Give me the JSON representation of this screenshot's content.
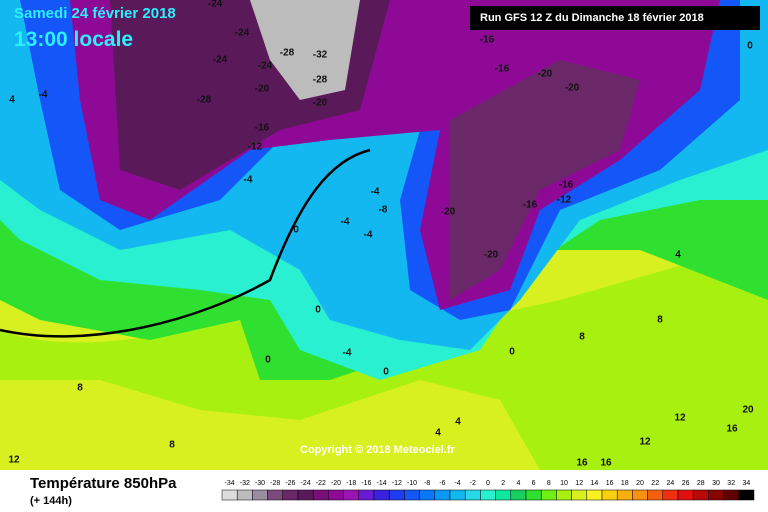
{
  "header": {
    "date": "Samedi 24 février 2018",
    "time": "13:00 locale",
    "run": "Run GFS 12 Z du Dimanche 18 février 2018"
  },
  "copyright": "Copyright © 2018 Meteociel.fr",
  "footer": {
    "title": "Température 850hPa",
    "lead": "(+ 144h)"
  },
  "scale": {
    "values": [
      -34,
      -32,
      -30,
      -28,
      -26,
      -24,
      -22,
      -20,
      -18,
      -16,
      -14,
      -12,
      -10,
      -8,
      -6,
      -4,
      -2,
      0,
      2,
      4,
      6,
      8,
      10,
      12,
      14,
      16,
      18,
      20,
      22,
      24,
      26,
      28,
      30,
      32,
      34
    ],
    "colors": [
      "#dcdcdc",
      "#bcbcbc",
      "#9c8ca0",
      "#7a4a7a",
      "#6a2868",
      "#5a1a5a",
      "#7a0f7a",
      "#8e0a96",
      "#9a14b4",
      "#6a1ad2",
      "#3a22e0",
      "#1e3cf0",
      "#1456f8",
      "#0a78fa",
      "#0a98f8",
      "#14b8f0",
      "#28d8e8",
      "#28f0d0",
      "#10e8a0",
      "#18d060",
      "#30e030",
      "#70f010",
      "#a8f010",
      "#d8f020",
      "#f8f020",
      "#f8d010",
      "#f8b010",
      "#f89010",
      "#f86010",
      "#f03010",
      "#e01010",
      "#b80808",
      "#880404",
      "#600000",
      "#000000"
    ]
  },
  "contour_labels": [
    -24,
    -24,
    -24,
    -28,
    -24,
    -28,
    -32,
    -28,
    -20,
    -20,
    -16,
    -12,
    -4,
    0,
    -4,
    -8,
    -4,
    -4,
    -16,
    -16,
    -20,
    -20,
    0,
    -16,
    -12,
    -16,
    -20,
    -20,
    4,
    -4,
    0,
    -4,
    4,
    8,
    4,
    8,
    8,
    12,
    12,
    16,
    16,
    16,
    20,
    12,
    8,
    0,
    0,
    0,
    4
  ]
}
